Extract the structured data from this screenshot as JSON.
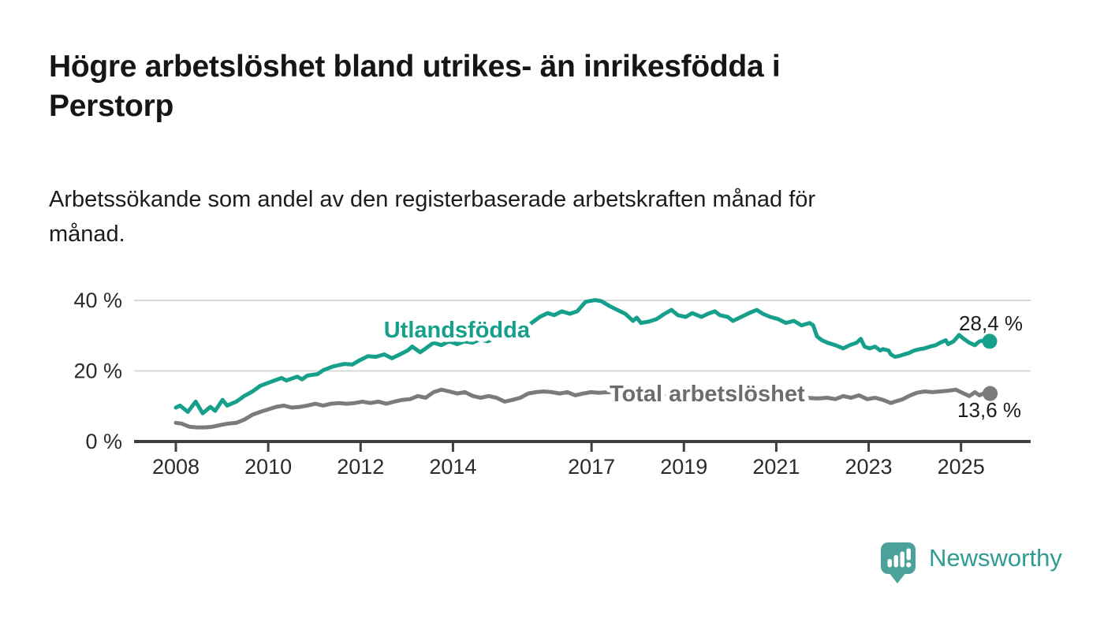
{
  "header": {
    "title": "Högre arbetslöshet bland utrikes- än inrikesfödda i Perstorp",
    "title_lines": [
      "Högre arbetslöshet bland utrikes- än inrikesfödda i",
      "Perstorp"
    ],
    "subtitle": "Arbetssökande som andel av den registerbaserade arbetskraften månad för månad.",
    "subtitle_lines": [
      "Arbetssökande som andel av den registerbaserade arbetskraften månad för",
      "månad."
    ]
  },
  "branding": {
    "logo_text": "Newsworthy",
    "logo_text_color": "#2f9c92",
    "logo_icon_color": "#4aa29a",
    "logo_icon_name": "newsworthy-bar-chart-bubble-icon"
  },
  "chart_data": {
    "type": "line",
    "title": "Högre arbetslöshet bland utrikes- än inrikesfödda i Perstorp",
    "subtitle": "Arbetssökande som andel av den registerbaserade arbetskraften månad för månad.",
    "unit": "%",
    "grid": true,
    "legend_position": "inline-labels",
    "colors": {
      "grid_line": "#d8d8d8",
      "axis_line": "#3f3f3f",
      "tick_label": "#2b2b2b",
      "value_label": "#1c1c1c"
    },
    "y_axis": {
      "range": [
        0,
        44
      ],
      "ticks": [
        0,
        20,
        40
      ],
      "tick_labels": [
        "0 %",
        "20 %",
        "40 %"
      ]
    },
    "x_axis": {
      "range_years": [
        2007.1,
        2026.5
      ],
      "ticks": [
        2008,
        2010,
        2012,
        2014,
        2017,
        2019,
        2021,
        2023,
        2025
      ],
      "tick_labels": [
        "2008",
        "2010",
        "2012",
        "2014",
        "2017",
        "2019",
        "2021",
        "2023",
        "2025"
      ]
    },
    "series": [
      {
        "name": "Utlandsfödda",
        "color": "#16a08c",
        "label_color": "#16a08c",
        "end_value": 28.4,
        "end_label": "28,4 %",
        "points": [
          [
            2008.0,
            9.6
          ],
          [
            2008.09,
            10.2
          ],
          [
            2008.26,
            8.4
          ],
          [
            2008.43,
            11.3
          ],
          [
            2008.58,
            8.0
          ],
          [
            2008.75,
            9.8
          ],
          [
            2008.85,
            8.7
          ],
          [
            2009.01,
            11.8
          ],
          [
            2009.11,
            10.2
          ],
          [
            2009.31,
            11.3
          ],
          [
            2009.48,
            12.9
          ],
          [
            2009.66,
            14.2
          ],
          [
            2009.83,
            15.8
          ],
          [
            2010.05,
            16.9
          ],
          [
            2010.29,
            18.0
          ],
          [
            2010.39,
            17.3
          ],
          [
            2010.63,
            18.4
          ],
          [
            2010.73,
            17.6
          ],
          [
            2010.85,
            18.7
          ],
          [
            2011.07,
            19.1
          ],
          [
            2011.19,
            20.2
          ],
          [
            2011.41,
            21.3
          ],
          [
            2011.65,
            22.0
          ],
          [
            2011.82,
            21.8
          ],
          [
            2011.99,
            23.1
          ],
          [
            2012.16,
            24.2
          ],
          [
            2012.33,
            24.0
          ],
          [
            2012.51,
            24.7
          ],
          [
            2012.68,
            23.6
          ],
          [
            2012.85,
            24.7
          ],
          [
            2013.02,
            25.8
          ],
          [
            2013.12,
            26.9
          ],
          [
            2013.29,
            25.3
          ],
          [
            2013.41,
            26.4
          ],
          [
            2013.58,
            28.0
          ],
          [
            2013.75,
            27.3
          ],
          [
            2013.92,
            28.4
          ],
          [
            2014.09,
            27.6
          ],
          [
            2014.25,
            28.4
          ],
          [
            2014.42,
            28.0
          ],
          [
            2014.58,
            28.9
          ],
          [
            2014.75,
            28.4
          ],
          [
            2014.92,
            29.3
          ],
          [
            2015.08,
            30.0
          ],
          [
            2015.25,
            29.6
          ],
          [
            2015.42,
            31.1
          ],
          [
            2015.63,
            32.9
          ],
          [
            2015.88,
            35.3
          ],
          [
            2016.05,
            36.4
          ],
          [
            2016.19,
            35.8
          ],
          [
            2016.36,
            36.9
          ],
          [
            2016.53,
            36.2
          ],
          [
            2016.69,
            36.9
          ],
          [
            2016.87,
            39.6
          ],
          [
            2017.08,
            40.1
          ],
          [
            2017.21,
            39.8
          ],
          [
            2017.39,
            38.4
          ],
          [
            2017.56,
            37.3
          ],
          [
            2017.73,
            36.2
          ],
          [
            2017.9,
            34.2
          ],
          [
            2017.98,
            35.1
          ],
          [
            2018.07,
            33.6
          ],
          [
            2018.24,
            34.0
          ],
          [
            2018.41,
            34.7
          ],
          [
            2018.58,
            36.2
          ],
          [
            2018.73,
            37.3
          ],
          [
            2018.87,
            35.8
          ],
          [
            2019.04,
            35.3
          ],
          [
            2019.18,
            36.4
          ],
          [
            2019.38,
            35.3
          ],
          [
            2019.52,
            36.2
          ],
          [
            2019.67,
            36.9
          ],
          [
            2019.78,
            35.8
          ],
          [
            2019.95,
            35.3
          ],
          [
            2020.06,
            34.2
          ],
          [
            2020.24,
            35.3
          ],
          [
            2020.41,
            36.4
          ],
          [
            2020.58,
            37.3
          ],
          [
            2020.71,
            36.2
          ],
          [
            2020.87,
            35.3
          ],
          [
            2021.04,
            34.7
          ],
          [
            2021.21,
            33.6
          ],
          [
            2021.38,
            34.2
          ],
          [
            2021.55,
            32.9
          ],
          [
            2021.72,
            33.6
          ],
          [
            2021.8,
            32.9
          ],
          [
            2021.88,
            29.8
          ],
          [
            2021.99,
            28.7
          ],
          [
            2022.11,
            28.0
          ],
          [
            2022.28,
            27.3
          ],
          [
            2022.45,
            26.4
          ],
          [
            2022.59,
            27.3
          ],
          [
            2022.74,
            28.0
          ],
          [
            2022.83,
            29.1
          ],
          [
            2022.91,
            26.9
          ],
          [
            2023.02,
            26.4
          ],
          [
            2023.14,
            26.9
          ],
          [
            2023.25,
            25.8
          ],
          [
            2023.31,
            26.2
          ],
          [
            2023.43,
            25.8
          ],
          [
            2023.48,
            24.7
          ],
          [
            2023.57,
            24.0
          ],
          [
            2023.65,
            24.2
          ],
          [
            2023.77,
            24.7
          ],
          [
            2023.87,
            25.1
          ],
          [
            2023.99,
            25.8
          ],
          [
            2024.11,
            26.2
          ],
          [
            2024.21,
            26.4
          ],
          [
            2024.33,
            26.9
          ],
          [
            2024.45,
            27.3
          ],
          [
            2024.55,
            28.0
          ],
          [
            2024.67,
            28.7
          ],
          [
            2024.72,
            27.6
          ],
          [
            2024.84,
            28.4
          ],
          [
            2024.96,
            30.2
          ],
          [
            2025.06,
            29.1
          ],
          [
            2025.18,
            28.0
          ],
          [
            2025.3,
            27.3
          ],
          [
            2025.4,
            28.4
          ],
          [
            2025.52,
            28.7
          ],
          [
            2025.62,
            28.4
          ]
        ]
      },
      {
        "name": "Total arbetslöshet",
        "color": "#7b7b7e",
        "label_color": "#6d6d71",
        "end_value": 13.6,
        "end_label": "13,6 %",
        "points": [
          [
            2008.0,
            5.3
          ],
          [
            2008.12,
            5.1
          ],
          [
            2008.29,
            4.2
          ],
          [
            2008.46,
            4.0
          ],
          [
            2008.63,
            4.0
          ],
          [
            2008.8,
            4.2
          ],
          [
            2008.97,
            4.7
          ],
          [
            2009.14,
            5.1
          ],
          [
            2009.31,
            5.3
          ],
          [
            2009.48,
            6.2
          ],
          [
            2009.66,
            7.6
          ],
          [
            2009.83,
            8.4
          ],
          [
            2010.0,
            9.1
          ],
          [
            2010.17,
            9.8
          ],
          [
            2010.34,
            10.2
          ],
          [
            2010.51,
            9.6
          ],
          [
            2010.68,
            9.8
          ],
          [
            2010.85,
            10.2
          ],
          [
            2011.02,
            10.7
          ],
          [
            2011.19,
            10.2
          ],
          [
            2011.36,
            10.7
          ],
          [
            2011.53,
            10.9
          ],
          [
            2011.7,
            10.7
          ],
          [
            2011.87,
            10.9
          ],
          [
            2012.04,
            11.3
          ],
          [
            2012.21,
            10.9
          ],
          [
            2012.39,
            11.3
          ],
          [
            2012.56,
            10.7
          ],
          [
            2012.73,
            11.3
          ],
          [
            2012.9,
            11.8
          ],
          [
            2013.07,
            12.0
          ],
          [
            2013.24,
            12.9
          ],
          [
            2013.41,
            12.4
          ],
          [
            2013.58,
            14.0
          ],
          [
            2013.75,
            14.7
          ],
          [
            2013.92,
            14.2
          ],
          [
            2014.09,
            13.6
          ],
          [
            2014.26,
            14.0
          ],
          [
            2014.43,
            12.9
          ],
          [
            2014.6,
            12.4
          ],
          [
            2014.77,
            12.9
          ],
          [
            2014.94,
            12.4
          ],
          [
            2015.12,
            11.3
          ],
          [
            2015.29,
            11.8
          ],
          [
            2015.46,
            12.4
          ],
          [
            2015.63,
            13.6
          ],
          [
            2015.8,
            14.0
          ],
          [
            2015.97,
            14.2
          ],
          [
            2016.14,
            14.0
          ],
          [
            2016.31,
            13.6
          ],
          [
            2016.48,
            14.0
          ],
          [
            2016.65,
            13.1
          ],
          [
            2016.82,
            13.6
          ],
          [
            2016.99,
            14.0
          ],
          [
            2017.16,
            13.8
          ],
          [
            2017.4,
            14.0
          ],
          [
            2017.7,
            13.6
          ],
          [
            2018.0,
            13.1
          ],
          [
            2018.3,
            13.3
          ],
          [
            2018.6,
            12.9
          ],
          [
            2018.9,
            12.4
          ],
          [
            2019.2,
            12.7
          ],
          [
            2019.5,
            12.2
          ],
          [
            2019.8,
            12.4
          ],
          [
            2020.1,
            12.9
          ],
          [
            2020.4,
            13.3
          ],
          [
            2020.7,
            12.9
          ],
          [
            2021.0,
            12.7
          ],
          [
            2021.3,
            12.2
          ],
          [
            2021.6,
            12.4
          ],
          [
            2021.9,
            12.2
          ],
          [
            2022.11,
            12.4
          ],
          [
            2022.28,
            12.0
          ],
          [
            2022.45,
            12.9
          ],
          [
            2022.62,
            12.4
          ],
          [
            2022.79,
            13.1
          ],
          [
            2022.97,
            12.0
          ],
          [
            2023.14,
            12.4
          ],
          [
            2023.31,
            11.8
          ],
          [
            2023.48,
            10.9
          ],
          [
            2023.57,
            11.3
          ],
          [
            2023.74,
            12.0
          ],
          [
            2023.87,
            12.9
          ],
          [
            2024.04,
            13.8
          ],
          [
            2024.21,
            14.2
          ],
          [
            2024.38,
            14.0
          ],
          [
            2024.55,
            14.2
          ],
          [
            2024.72,
            14.4
          ],
          [
            2024.89,
            14.7
          ],
          [
            2025.06,
            13.6
          ],
          [
            2025.18,
            12.9
          ],
          [
            2025.3,
            14.0
          ],
          [
            2025.4,
            13.1
          ],
          [
            2025.52,
            13.8
          ],
          [
            2025.63,
            13.6
          ]
        ]
      }
    ]
  }
}
